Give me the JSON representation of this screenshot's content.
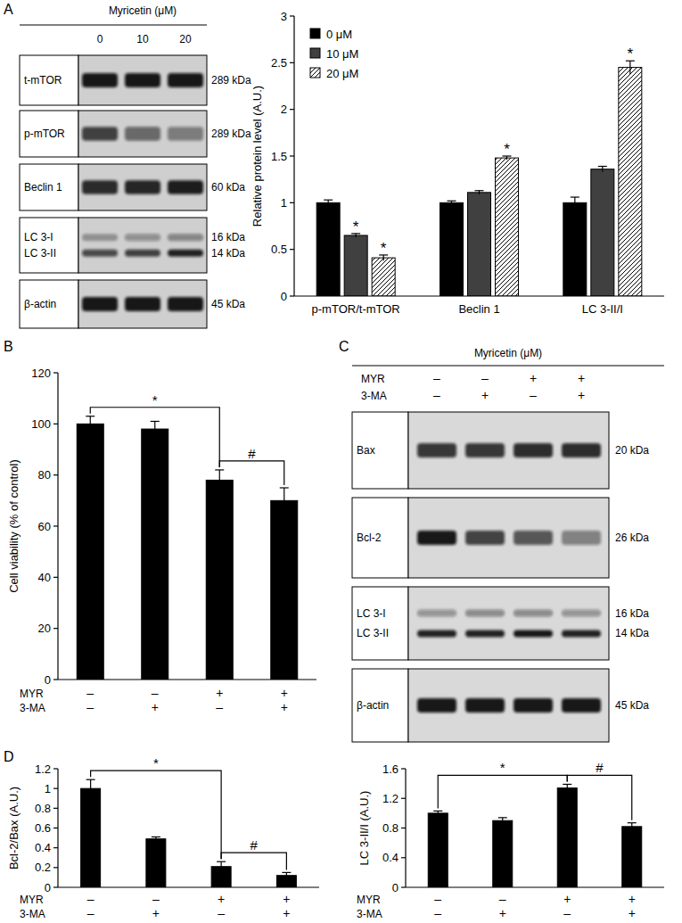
{
  "panels": [
    "A",
    "B",
    "C",
    "D"
  ],
  "blots": [
    {
      "header": "Myricetin (μM)",
      "lanes": [
        "0",
        "10",
        "20"
      ],
      "rows": [
        {
          "label": "t-mTOR",
          "kda": "289 kDa",
          "bands": [
            0.95,
            0.95,
            0.95
          ]
        },
        {
          "label": "p-mTOR",
          "kda": "289 kDa",
          "bands": [
            0.75,
            0.55,
            0.45
          ]
        },
        {
          "label": "Beclin 1",
          "kda": "60 kDa",
          "bands": [
            0.85,
            0.88,
            0.92
          ]
        },
        {
          "label": [
            "LC 3-I",
            "LC 3-II"
          ],
          "kda": [
            "16 kDa",
            "14 kDa"
          ],
          "bands": [
            [
              0.3,
              0.35,
              0.4
            ],
            [
              0.7,
              0.75,
              0.9
            ]
          ]
        },
        {
          "label": "β-actin",
          "kda": "45 kDa",
          "bands": [
            0.95,
            0.95,
            0.95
          ]
        }
      ]
    },
    {
      "header": "Myricetin (μM)",
      "lane_rows": [
        {
          "label": "MYR",
          "values": [
            "–",
            "–",
            "+",
            "+"
          ]
        },
        {
          "label": "3-MA",
          "values": [
            "–",
            "+",
            "–",
            "+"
          ]
        }
      ],
      "rows": [
        {
          "label": "Bax",
          "kda": "20 kDa",
          "bands": [
            0.8,
            0.8,
            0.85,
            0.85
          ]
        },
        {
          "label": "Bcl-2",
          "kda": "26 kDa",
          "bands": [
            0.95,
            0.75,
            0.65,
            0.45
          ]
        },
        {
          "label": [
            "LC 3-I",
            "LC 3-II"
          ],
          "kda": [
            "16 kDa",
            "14 kDa"
          ],
          "bands": [
            [
              0.35,
              0.4,
              0.4,
              0.35
            ],
            [
              0.9,
              0.9,
              0.95,
              0.9
            ]
          ]
        },
        {
          "label": "β-actin",
          "kda": "45 kDa",
          "bands": [
            0.95,
            0.95,
            0.95,
            0.95
          ]
        }
      ]
    }
  ],
  "chart_data": [
    {
      "type": "bar",
      "ylabel": "Relative protein level (A.U.)",
      "categories": [
        "p-mTOR/t-mTOR",
        "Beclin 1",
        "LC 3-II/I"
      ],
      "series": [
        {
          "name": "0 μM",
          "color": "#000000",
          "values": [
            1.0,
            1.0,
            1.0
          ],
          "errors": [
            0.03,
            0.02,
            0.06
          ]
        },
        {
          "name": "10 μM",
          "color": "#404040",
          "values": [
            0.65,
            1.11,
            1.36
          ],
          "errors": [
            0.02,
            0.02,
            0.03
          ]
        },
        {
          "name": "20 μM",
          "color": "#d0d0d0",
          "marker": "hatch",
          "values": [
            0.41,
            1.48,
            2.45
          ],
          "errors": [
            0.03,
            0.02,
            0.07
          ]
        }
      ],
      "ylim": [
        0,
        3
      ],
      "yticks": [
        0,
        0.5,
        1,
        1.5,
        2,
        2.5,
        3
      ],
      "legend": "upper left",
      "annotations": [
        {
          "text": "*",
          "series": 1,
          "category": 0
        },
        {
          "text": "*",
          "series": 2,
          "category": 0
        },
        {
          "text": "*",
          "series": 2,
          "category": 1
        },
        {
          "text": "*",
          "series": 2,
          "category": 2
        }
      ]
    },
    {
      "type": "bar",
      "ylabel": "Cell viability (% of control)",
      "categories": [
        null,
        null,
        null,
        null
      ],
      "x_rows": [
        {
          "label": "MYR",
          "values": [
            "–",
            "–",
            "+",
            "+"
          ]
        },
        {
          "label": "3-MA",
          "values": [
            "–",
            "+",
            "–",
            "+"
          ]
        }
      ],
      "values": [
        100,
        98,
        78,
        70
      ],
      "errors": [
        3,
        3,
        4,
        5
      ],
      "color": "#000000",
      "ylim": [
        0,
        120
      ],
      "yticks": [
        0,
        20,
        40,
        60,
        80,
        100,
        120
      ],
      "brackets": [
        {
          "from": 0,
          "to": 2,
          "text": "*"
        },
        {
          "from": 2,
          "to": 3,
          "text": "#"
        }
      ]
    },
    {
      "type": "bar",
      "ylabel": "Bcl-2/Bax (A.U.)",
      "categories": [
        null,
        null,
        null,
        null
      ],
      "x_rows": [
        {
          "label": "MYR",
          "values": [
            "–",
            "–",
            "+",
            "+"
          ]
        },
        {
          "label": "3-MA",
          "values": [
            "–",
            "+",
            "–",
            "+"
          ]
        }
      ],
      "values": [
        1.0,
        0.49,
        0.21,
        0.12
      ],
      "errors": [
        0.09,
        0.02,
        0.05,
        0.03
      ],
      "color": "#000000",
      "ylim": [
        0,
        1.2
      ],
      "yticks": [
        0,
        0.2,
        0.4,
        0.6,
        0.8,
        1,
        1.2
      ],
      "brackets": [
        {
          "from": 0,
          "to": 2,
          "text": "*"
        },
        {
          "from": 2,
          "to": 3,
          "text": "#"
        }
      ]
    },
    {
      "type": "bar",
      "ylabel": "LC 3-II/I (A.U.)",
      "categories": [
        null,
        null,
        null,
        null
      ],
      "x_rows": [
        {
          "label": "MYR",
          "values": [
            "–",
            "–",
            "+",
            "+"
          ]
        },
        {
          "label": "3-MA",
          "values": [
            "–",
            "+",
            "–",
            "+"
          ]
        }
      ],
      "values": [
        1.0,
        0.9,
        1.34,
        0.82
      ],
      "errors": [
        0.03,
        0.04,
        0.05,
        0.05
      ],
      "color": "#000000",
      "ylim": [
        0,
        1.6
      ],
      "yticks": [
        0,
        0.4,
        0.8,
        1.2,
        1.6
      ],
      "brackets": [
        {
          "from": 0,
          "to": 2,
          "text": "*"
        },
        {
          "from": 2,
          "to": 3,
          "text": "#"
        }
      ]
    }
  ]
}
